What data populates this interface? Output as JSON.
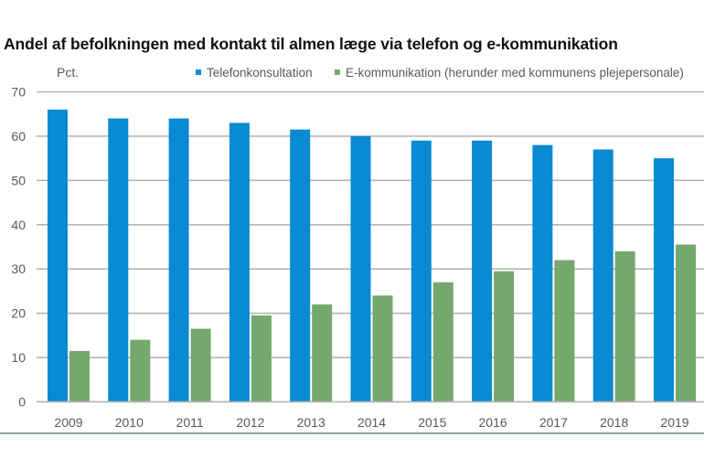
{
  "chart_data": {
    "type": "bar",
    "title": "Andel af befolkningen med kontakt til almen læge via telefon og e-kommunikation",
    "ylabel": "Pct.",
    "xlabel": "",
    "ylim": [
      0,
      70
    ],
    "yticks": [
      0,
      10,
      20,
      30,
      40,
      50,
      60,
      70
    ],
    "grid": true,
    "legend_position": "top",
    "categories": [
      "2009",
      "2010",
      "2011",
      "2012",
      "2013",
      "2014",
      "2015",
      "2016",
      "2017",
      "2018",
      "2019"
    ],
    "series": [
      {
        "name": "Telefonkonsultation",
        "color": "#0a8ad2",
        "values": [
          66,
          64,
          64,
          63,
          61.5,
          60,
          59,
          59,
          58,
          57,
          55
        ]
      },
      {
        "name": "E-kommunikation (herunder med kommunens plejepersonale)",
        "color": "#74a86c",
        "values": [
          11.5,
          14,
          16.5,
          19.5,
          22,
          24,
          27,
          29.5,
          32,
          34,
          35.5
        ]
      }
    ]
  }
}
